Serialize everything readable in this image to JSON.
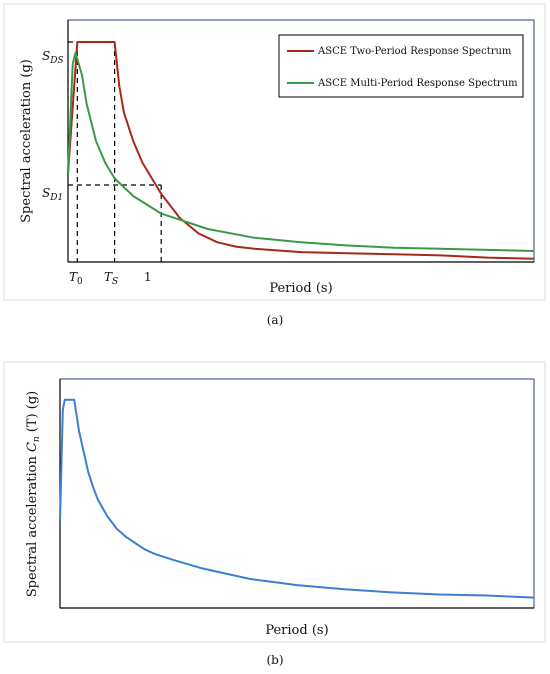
{
  "figure_a": {
    "caption": "(a)",
    "ylabel": "Spectral acceleration (g)",
    "xlabel": "Period (s)",
    "y_marks": {
      "sds": "S",
      "sds_sub": "DS",
      "sd1": "S",
      "sd1_sub": "D1"
    },
    "x_marks": {
      "t0": "T",
      "t0_sub": "0",
      "ts": "T",
      "ts_sub": "S",
      "one": "1"
    },
    "legend": [
      "ASCE Two-Period Response Spectrum",
      "ASCE Multi-Period Response Spectrum"
    ],
    "colors": {
      "two_period": "#a52a1a",
      "multi_period": "#3a9a4a",
      "frame": "#2a3f8f"
    }
  },
  "figure_b": {
    "caption": "(b)",
    "ylabel_prefix": "Spectral acceleration ",
    "ylabel_sym": "C",
    "ylabel_sub": "n",
    "ylabel_suffix": " (T) (g)",
    "xlabel": "Period (s)",
    "colors": {
      "series": "#3a7fd6",
      "frame": "#2a3f8f"
    }
  },
  "chart_data": [
    {
      "type": "line",
      "xlabel": "Period (s)",
      "ylabel": "Spectral acceleration (g)",
      "xlim": [
        0,
        5
      ],
      "ylim": [
        0,
        1.1
      ],
      "grid": false,
      "legend_position": "top-right",
      "x_marks": {
        "T0": 0.1,
        "TS": 0.5,
        "1": 1.0
      },
      "y_marks": {
        "SDS": 1.0,
        "SD1": 0.35
      },
      "series": [
        {
          "name": "ASCE Two-Period Response Spectrum",
          "x": [
            0,
            0.1,
            0.5,
            0.55,
            0.6,
            0.7,
            0.8,
            0.9,
            1.0,
            1.2,
            1.4,
            1.6,
            1.8,
            2.0,
            2.5,
            3.0,
            3.5,
            4.0,
            4.5,
            5.0
          ],
          "y": [
            0.4,
            1.0,
            1.0,
            0.8,
            0.68,
            0.55,
            0.45,
            0.38,
            0.31,
            0.2,
            0.13,
            0.09,
            0.07,
            0.06,
            0.045,
            0.04,
            0.035,
            0.03,
            0.02,
            0.015
          ]
        },
        {
          "name": "ASCE Multi-Period Response Spectrum",
          "x": [
            0,
            0.05,
            0.08,
            0.15,
            0.2,
            0.3,
            0.4,
            0.5,
            0.7,
            1.0,
            1.5,
            2.0,
            2.5,
            3.0,
            3.5,
            4.0,
            4.5,
            5.0
          ],
          "y": [
            0.4,
            0.9,
            0.95,
            0.85,
            0.72,
            0.55,
            0.45,
            0.38,
            0.3,
            0.22,
            0.15,
            0.11,
            0.09,
            0.075,
            0.065,
            0.06,
            0.055,
            0.05
          ]
        }
      ]
    },
    {
      "type": "line",
      "xlabel": "Period (s)",
      "ylabel": "Spectral acceleration Cn (T) (g)",
      "xlim": [
        0,
        5
      ],
      "ylim": [
        0,
        1.1
      ],
      "grid": false,
      "series": [
        {
          "x": [
            0,
            0.03,
            0.05,
            0.1,
            0.15,
            0.2,
            0.25,
            0.3,
            0.35,
            0.4,
            0.5,
            0.6,
            0.7,
            0.8,
            0.9,
            1.0,
            1.2,
            1.5,
            2.0,
            2.5,
            3.0,
            3.5,
            4.0,
            4.5,
            5.0
          ],
          "y": [
            0.42,
            0.95,
            1.0,
            1.0,
            1.0,
            0.85,
            0.75,
            0.65,
            0.58,
            0.52,
            0.44,
            0.38,
            0.34,
            0.31,
            0.28,
            0.26,
            0.23,
            0.19,
            0.14,
            0.11,
            0.09,
            0.075,
            0.065,
            0.06,
            0.05
          ]
        }
      ]
    }
  ]
}
